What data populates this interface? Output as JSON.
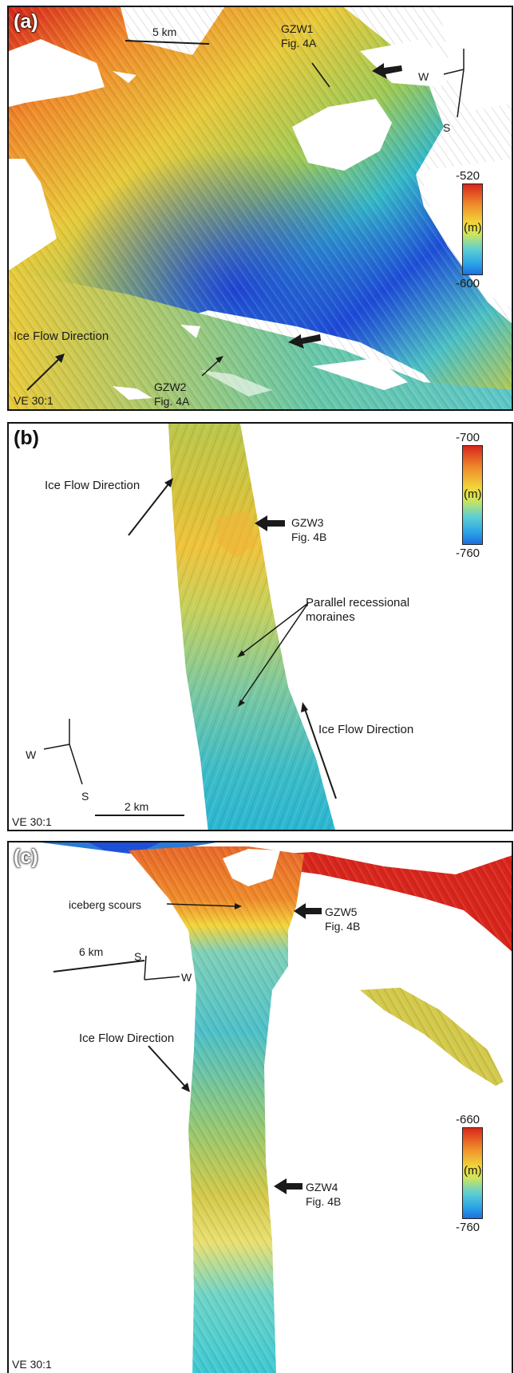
{
  "panels": [
    {
      "label": "(a)",
      "scale": "5 km",
      "gzw1_line1": "GZW1",
      "gzw1_line2": "Fig. 4A",
      "gzw2_line1": "GZW2",
      "gzw2_line2": "Fig. 4A",
      "flow": "Ice Flow Direction",
      "ve": "VE 30:1",
      "compass": {
        "w": "W",
        "s": "S"
      },
      "colorbar": {
        "max": "-520",
        "unit": "(m)",
        "min": "-600"
      }
    },
    {
      "label": "(b)",
      "flow_left": "Ice Flow Direction",
      "flow_right": "Ice Flow Direction",
      "gzw3_line1": "GZW3",
      "gzw3_line2": "Fig. 4B",
      "moraines_line1": "Parallel recessional",
      "moraines_line2": "moraines",
      "scale": "2 km",
      "ve": "VE 30:1",
      "compass": {
        "w": "W",
        "s": "S"
      },
      "colorbar": {
        "max": "-700",
        "unit": "(m)",
        "min": "-760"
      }
    },
    {
      "label": "(c)",
      "scours": "iceberg scours",
      "gzw5_line1": "GZW5",
      "gzw5_line2": "Fig. 4B",
      "gzw4_line1": "GZW4",
      "gzw4_line2": "Fig. 4B",
      "scale": "6 km",
      "flow": "Ice Flow Direction",
      "ve": "VE 30:1",
      "compass": {
        "s": "S",
        "w": "W"
      },
      "colorbar": {
        "max": "-660",
        "unit": "(m)",
        "min": "-760"
      }
    }
  ],
  "colors": {
    "deep": "#1e4fd8",
    "cyan": "#2bc8d8",
    "yellow": "#e8d43a",
    "orange": "#ef8a2a",
    "red": "#d8261c",
    "frame": "#111111"
  }
}
